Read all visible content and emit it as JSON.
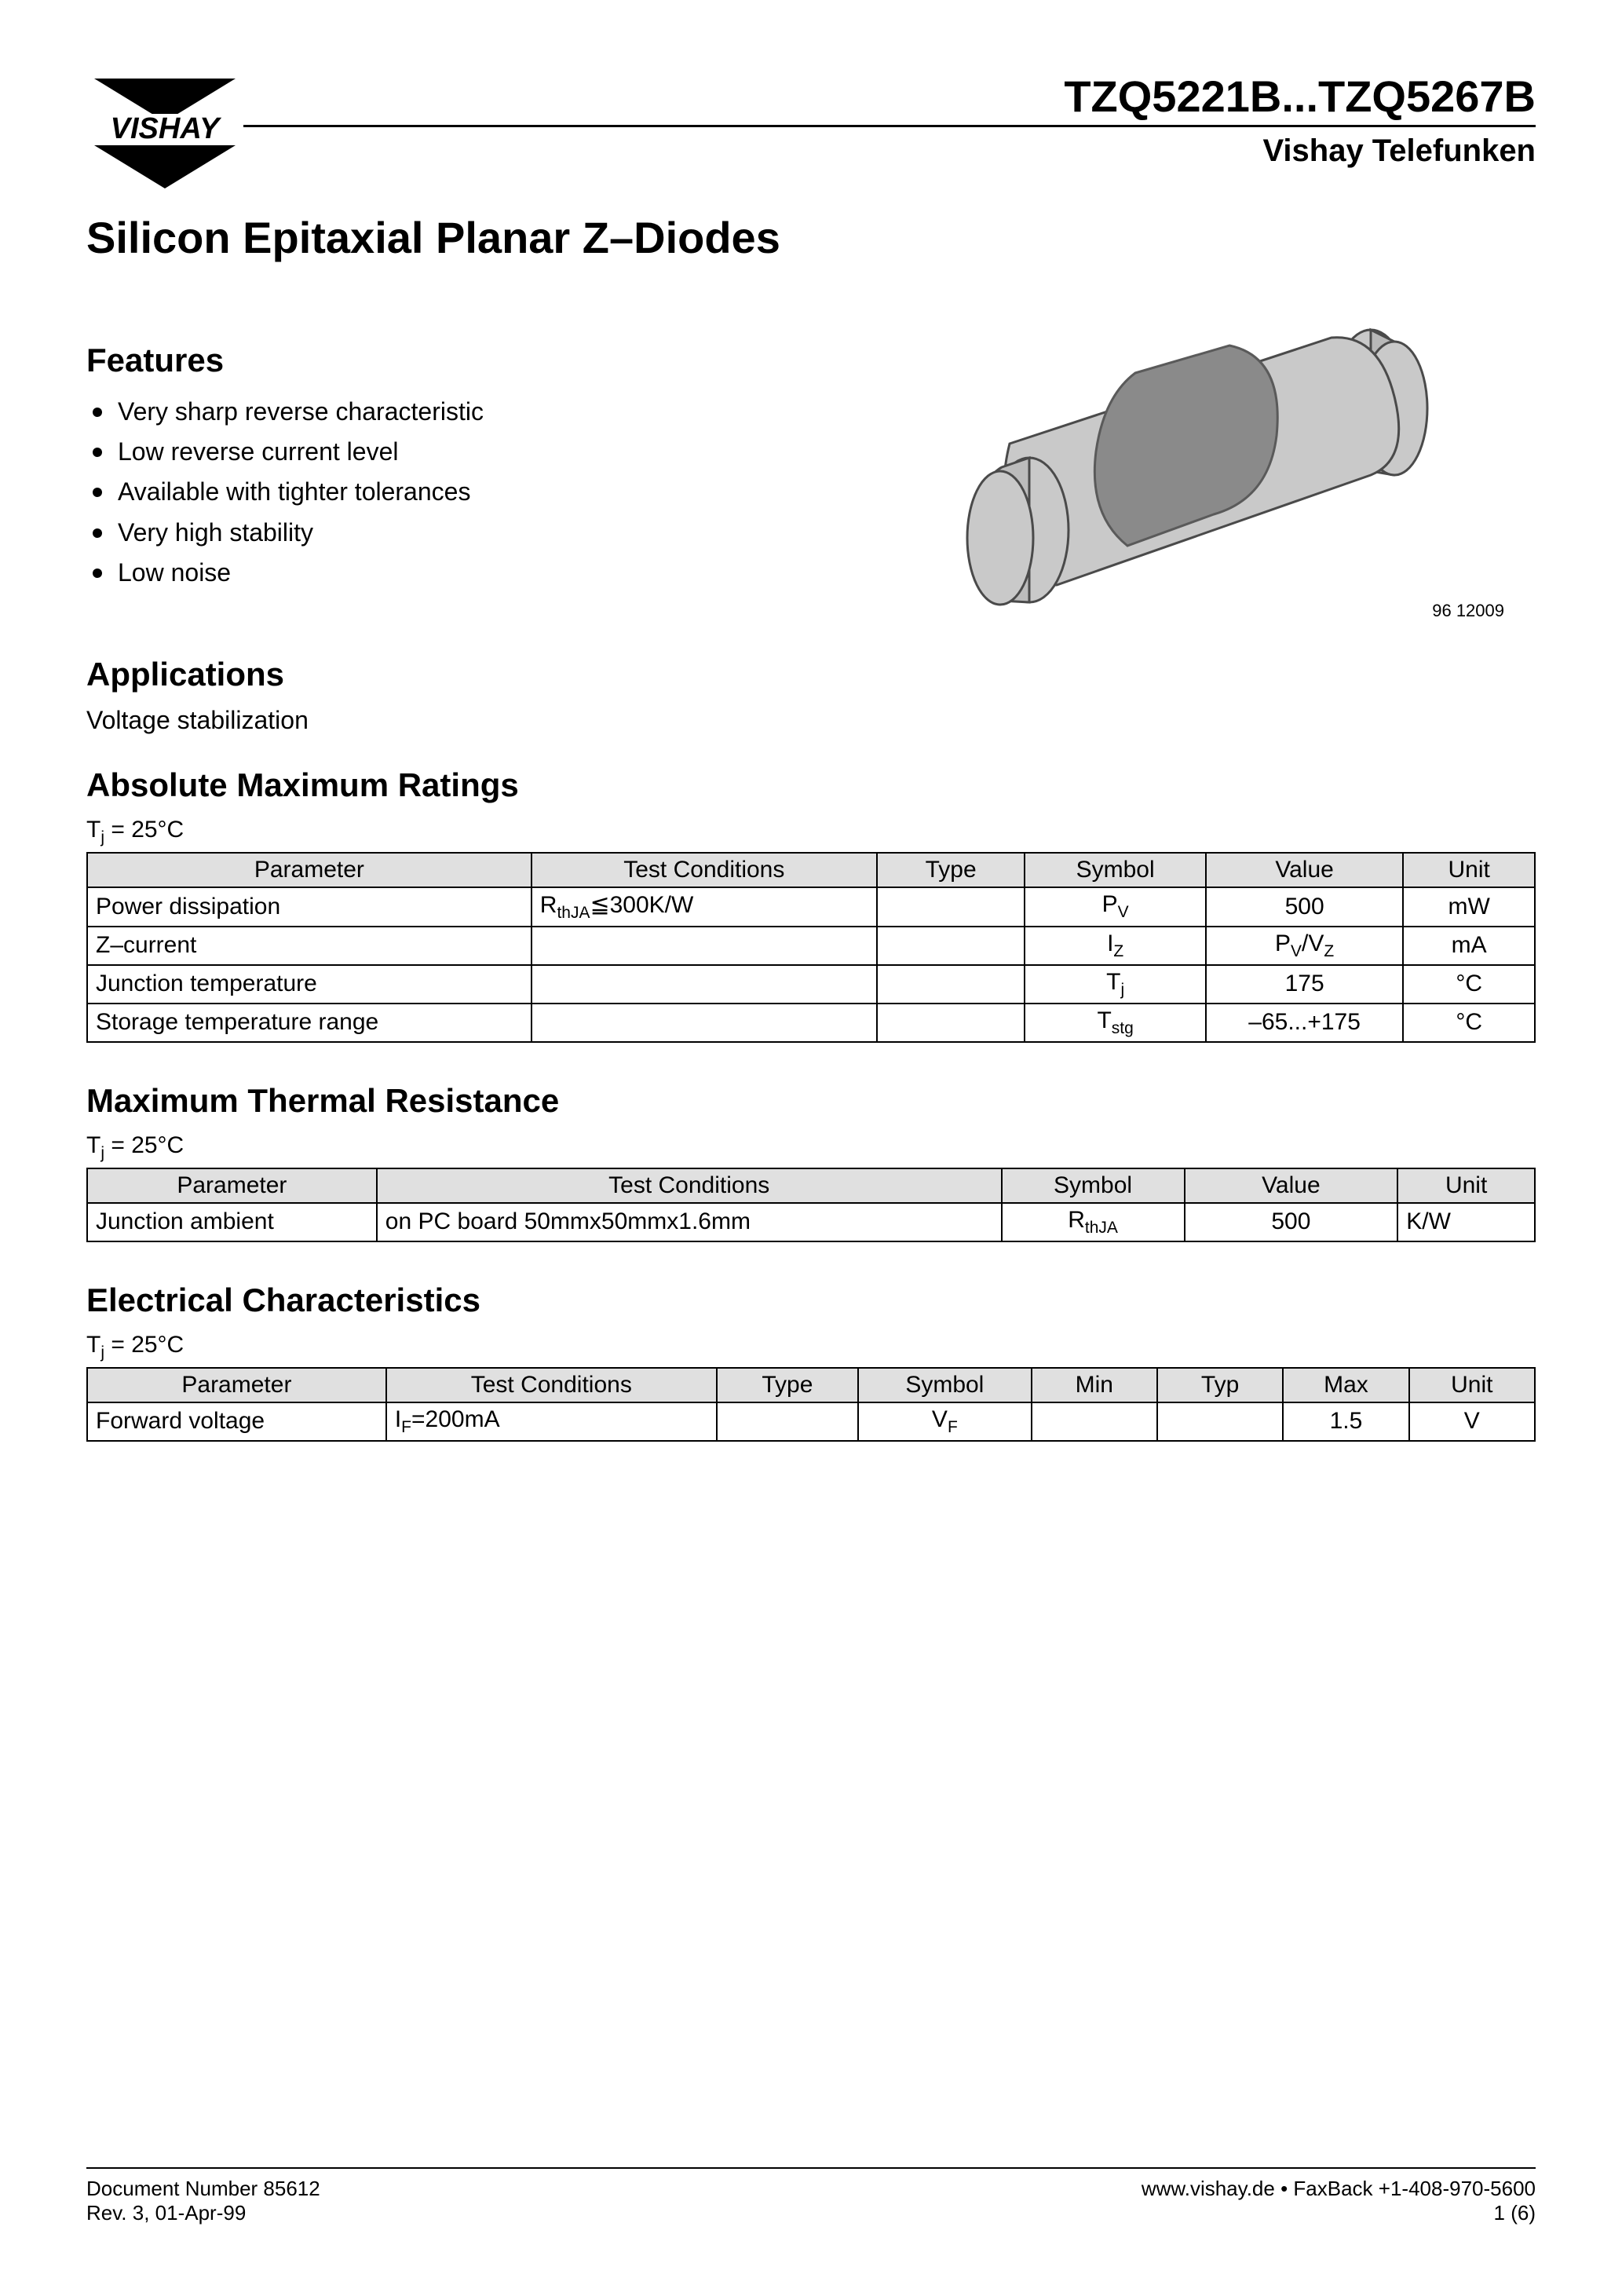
{
  "header": {
    "logo_text": "VISHAY",
    "part_range": "TZQ5221B...TZQ5267B",
    "brand": "Vishay Telefunken"
  },
  "title": "Silicon Epitaxial Planar Z–Diodes",
  "features": {
    "heading": "Features",
    "items": [
      "Very sharp reverse characteristic",
      "Low reverse current level",
      "Available with tighter tolerances",
      "Very high stability",
      "Low noise"
    ]
  },
  "applications": {
    "heading": "Applications",
    "text": "Voltage stabilization"
  },
  "component_image": {
    "code": "96 12009",
    "body_color": "#c9c9c9",
    "band_color": "#8a8a8a",
    "outline_color": "#4a4a4a"
  },
  "abs_max": {
    "heading": "Absolute Maximum Ratings",
    "condition_html": "T<sub>j</sub> = 25°C",
    "columns": [
      "Parameter",
      "Test Conditions",
      "Type",
      "Symbol",
      "Value",
      "Unit"
    ],
    "col_widths": [
      "27%",
      "21%",
      "9%",
      "11%",
      "12%",
      "8%"
    ],
    "rows": [
      {
        "param": "Power dissipation",
        "cond_html": "R<sub>thJA</sub>≦300K/W",
        "type": "",
        "symbol_html": "P<sub>V</sub>",
        "value": "500",
        "unit": "mW"
      },
      {
        "param": "Z–current",
        "cond_html": "",
        "type": "",
        "symbol_html": "I<sub>Z</sub>",
        "value_html": "P<sub>V</sub>/V<sub>Z</sub>",
        "unit": "mA"
      },
      {
        "param": "Junction temperature",
        "cond_html": "",
        "type": "",
        "symbol_html": "T<sub>j</sub>",
        "value": "175",
        "unit": "°C"
      },
      {
        "param": "Storage temperature range",
        "cond_html": "",
        "type": "",
        "symbol_html": "T<sub>stg</sub>",
        "value": "–65...+175",
        "unit": "°C"
      }
    ]
  },
  "thermal": {
    "heading": "Maximum Thermal Resistance",
    "condition_html": "T<sub>j</sub> = 25°C",
    "columns": [
      "Parameter",
      "Test Conditions",
      "Symbol",
      "Value",
      "Unit"
    ],
    "col_widths": [
      "19%",
      "41%",
      "12%",
      "14%",
      "9%"
    ],
    "rows": [
      {
        "param": "Junction ambient",
        "cond": "on PC board 50mmx50mmx1.6mm",
        "symbol_html": "R<sub>thJA</sub>",
        "value": "500",
        "unit": "K/W"
      }
    ]
  },
  "electrical": {
    "heading": "Electrical Characteristics",
    "condition_html": "T<sub>j</sub> = 25°C",
    "columns": [
      "Parameter",
      "Test Conditions",
      "Type",
      "Symbol",
      "Min",
      "Typ",
      "Max",
      "Unit"
    ],
    "col_widths": [
      "19%",
      "21%",
      "9%",
      "11%",
      "8%",
      "8%",
      "8%",
      "8%"
    ],
    "rows": [
      {
        "param": "Forward voltage",
        "cond_html": "I<sub>F</sub>=200mA",
        "type": "",
        "symbol_html": "V<sub>F</sub>",
        "min": "",
        "typ": "",
        "max": "1.5",
        "unit": "V"
      }
    ]
  },
  "footer": {
    "doc_num": "Document Number 85612",
    "rev": "Rev. 3, 01-Apr-99",
    "web": "www.vishay.de • FaxBack +1-408-970-5600",
    "page": "1 (6)"
  }
}
